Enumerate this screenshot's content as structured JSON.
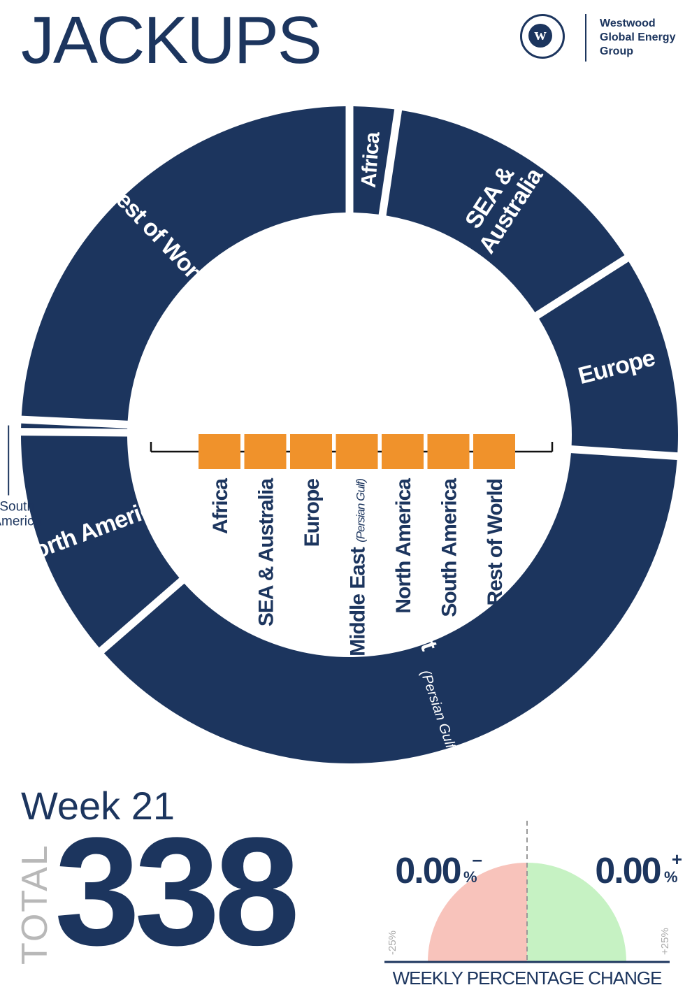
{
  "header": {
    "title": "JACKUPS",
    "logo_mark": "w",
    "logo_lines": [
      "Westwood",
      "Global Energy",
      "Group"
    ]
  },
  "chart_data": {
    "type": "pie",
    "variant": "donut",
    "title": "",
    "slices": [
      {
        "label": "Africa",
        "value": 8
      },
      {
        "label": "SEA & Australia",
        "value": 46
      },
      {
        "label": "Europe",
        "value": 34
      },
      {
        "label": "Middle East",
        "sublabel": "(Persian Gulf & Red Sea)",
        "value": 127
      },
      {
        "label": "North America",
        "value": 39
      },
      {
        "label": "South America",
        "value": 2
      },
      {
        "label": "Rest of World",
        "value": 82
      }
    ],
    "start_angle_deg": 0,
    "direction": "clockwise",
    "color": "#1c355e",
    "legend": {
      "placement": "center",
      "swatch_color": "#f0922b",
      "items": [
        {
          "label": "Africa"
        },
        {
          "label": "SEA & Australia"
        },
        {
          "label": "Europe"
        },
        {
          "label": "Middle East",
          "sublabel": "(Persian Gulf)"
        },
        {
          "label": "North America"
        },
        {
          "label": "South America"
        },
        {
          "label": "Rest of World"
        }
      ]
    }
  },
  "summary": {
    "week": "Week 21",
    "total_label": "TOTAL",
    "total": "338"
  },
  "change_gauge": {
    "negative_value": "0.00",
    "negative_sign": "–",
    "positive_value": "0.00",
    "positive_sign": "+",
    "unit": "%",
    "min_label": "-25%",
    "max_label": "+25%",
    "caption": "WEEKLY PERCENTAGE CHANGE",
    "negative_change_pct": 0.0,
    "positive_change_pct": 0.0,
    "negative_color": "#f8c3bb",
    "positive_color": "#c6f2c3"
  }
}
